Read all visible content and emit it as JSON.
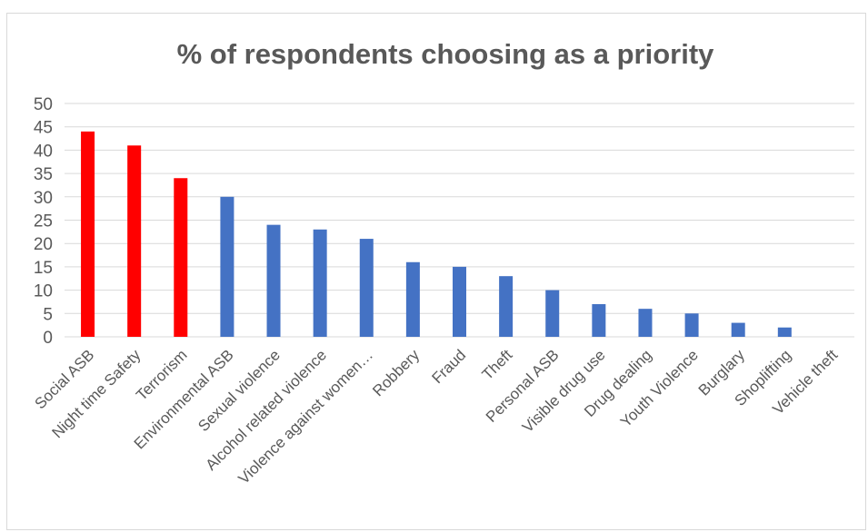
{
  "chart_data": {
    "type": "bar",
    "title": "% of respondents choosing as a priority",
    "xlabel": "",
    "ylabel": "",
    "ylim": [
      0,
      50
    ],
    "yticks": [
      0,
      5,
      10,
      15,
      20,
      25,
      30,
      35,
      40,
      45,
      50
    ],
    "grid": true,
    "legend": "none",
    "categories": [
      "Social ASB",
      "Night time Safety",
      "Terrorism",
      "Environmental ASB",
      "Sexual violence",
      "Alcohol related violence",
      "Violence against women…",
      "Robbery",
      "Fraud",
      "Theft",
      "Personal ASB",
      "Visible drug use",
      "Drug dealing",
      "Youth Violence",
      "Burglary",
      "Shoplifting",
      "Vehicle theft"
    ],
    "values": [
      44,
      41,
      34,
      30,
      24,
      23,
      21,
      16,
      15,
      13,
      10,
      7,
      6,
      5,
      3,
      2,
      0
    ],
    "bar_colors": [
      "#ff0000",
      "#ff0000",
      "#ff0000",
      "#4472c4",
      "#4472c4",
      "#4472c4",
      "#4472c4",
      "#4472c4",
      "#4472c4",
      "#4472c4",
      "#4472c4",
      "#4472c4",
      "#4472c4",
      "#4472c4",
      "#4472c4",
      "#4472c4",
      "#4472c4"
    ],
    "grid_color": "#d9d9d9",
    "text_color": "#595959"
  }
}
